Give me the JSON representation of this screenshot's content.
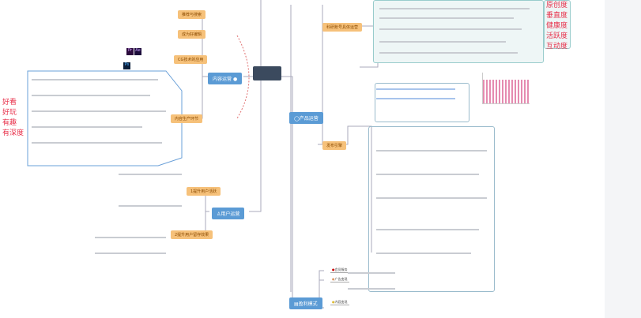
{
  "root": {
    "title": ""
  },
  "main_nodes": [
    {
      "label": "内容运营"
    },
    {
      "label": "产品运营"
    },
    {
      "label": "用户运营"
    },
    {
      "label": "盈利模式"
    }
  ],
  "content_subnodes": [
    {
      "label": "推荐与搜索"
    },
    {
      "label": "成为好编辑"
    },
    {
      "label": "CG技术的应用"
    },
    {
      "label": "内容生产环节"
    }
  ],
  "user_subnodes": [
    {
      "label": "1提升用户活跃"
    },
    {
      "label": "2提升用户留存效果"
    }
  ],
  "product_subnodes": [
    {
      "label": "科研账号具体运营"
    },
    {
      "label": "发布引擎"
    }
  ],
  "profit_subnodes": [
    {
      "label": "会员服务"
    },
    {
      "label": "广告变现"
    },
    {
      "label": "内容变现"
    }
  ],
  "left_keywords": [
    "好看",
    "好玩",
    "有趣",
    "有深度"
  ],
  "right_keywords": [
    "原创度",
    "垂直度",
    "健康度",
    "活跃度",
    "互动度"
  ],
  "icons": {
    "ps": "Ps",
    "pr": "Pr",
    "ae": "Ae"
  },
  "colors": {
    "main": "#5b9bd5",
    "sub": "#f6c17a",
    "root": "#3b4a5e",
    "accent": "#e8304a"
  }
}
